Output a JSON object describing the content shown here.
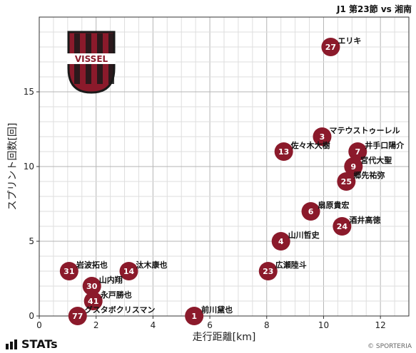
{
  "header": {
    "match_title": "J1 第23節 vs 湘南"
  },
  "footer": {
    "provider": "STATs",
    "copyright": "© SPORTERIA"
  },
  "logo": {
    "text": "VISSEL",
    "primary_color": "#8b1a2b",
    "secondary_color": "#1a1a1a"
  },
  "colors": {
    "marker": "#8b1a2b",
    "marker_text": "#ffffff",
    "grid_major": "#b5b5b5",
    "grid_minor": "#dedede"
  },
  "chart_data": {
    "type": "scatter",
    "title": "",
    "xlabel": "走行距離[km]",
    "ylabel": "スプリント回数[回]",
    "xlim": [
      0,
      13
    ],
    "ylim": [
      0,
      20
    ],
    "xticks": [
      0,
      2,
      4,
      6,
      8,
      10,
      12
    ],
    "yticks": [
      0,
      5,
      10,
      15
    ],
    "grid": true,
    "points": [
      {
        "number": "27",
        "name": "エリキ",
        "x": 10.25,
        "y": 18
      },
      {
        "number": "3",
        "name": "マテウストゥーレル",
        "x": 9.95,
        "y": 12
      },
      {
        "number": "13",
        "name": "佐々木大樹",
        "x": 8.6,
        "y": 11
      },
      {
        "number": "7",
        "name": "井手口陽介",
        "x": 11.2,
        "y": 11
      },
      {
        "number": "9",
        "name": "宮代大聖",
        "x": 11.05,
        "y": 10
      },
      {
        "number": "25",
        "name": "郷先祐弥",
        "x": 10.8,
        "y": 9
      },
      {
        "number": "6",
        "name": "扇原貴宏",
        "x": 9.55,
        "y": 7
      },
      {
        "number": "24",
        "name": "酒井高徳",
        "x": 10.65,
        "y": 6
      },
      {
        "number": "4",
        "name": "山川哲史",
        "x": 8.5,
        "y": 5
      },
      {
        "number": "23",
        "name": "広瀬陸斗",
        "x": 8.05,
        "y": 3
      },
      {
        "number": "31",
        "name": "岩波拓也",
        "x": 1.05,
        "y": 3
      },
      {
        "number": "14",
        "name": "汰木康也",
        "x": 3.15,
        "y": 3
      },
      {
        "number": "30",
        "name": "山内翔",
        "x": 1.85,
        "y": 2
      },
      {
        "number": "41",
        "name": "永戸勝也",
        "x": 1.9,
        "y": 1
      },
      {
        "number": "77",
        "name": "グスタボクリスマン",
        "x": 1.35,
        "y": 0
      },
      {
        "number": "1",
        "name": "前川黛也",
        "x": 5.45,
        "y": 0
      }
    ]
  }
}
